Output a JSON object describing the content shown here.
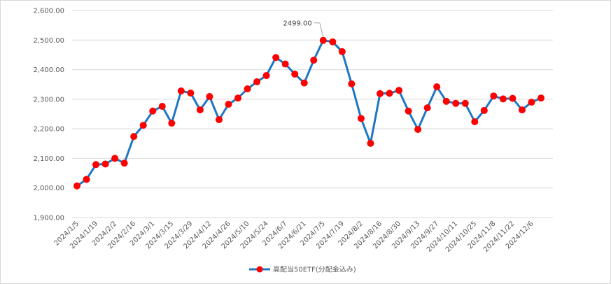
{
  "chart_data": {
    "type": "line",
    "ylim": [
      1900,
      2600
    ],
    "y_ticks": [
      "1,900.00",
      "2,000.00",
      "2,100.00",
      "2,200.00",
      "2,300.00",
      "2,400.00",
      "2,500.00",
      "2,600.00"
    ],
    "y_tick_values": [
      1900,
      2000,
      2100,
      2200,
      2300,
      2400,
      2500,
      2600
    ],
    "x_tick_labels": [
      "2024/1/5",
      "2024/1/19",
      "2024/2/2",
      "2024/2/16",
      "2024/3/1",
      "2024/3/15",
      "2024/3/29",
      "2024/4/12",
      "2024/4/26",
      "2024/5/10",
      "2024/5/24",
      "2024/6/7",
      "2024/6/21",
      "2024/7/5",
      "2024/7/19",
      "2024/8/2",
      "2024/8/16",
      "2024/8/30",
      "2024/9/13",
      "2024/9/27",
      "2024/10/11",
      "2024/10/25",
      "2024/11/8",
      "2024/11/22",
      "2024/12/6"
    ],
    "grid": "horizontal",
    "legend_position": "bottom",
    "series": [
      {
        "name": "高配当50ETF(分配金込み)",
        "color": "#1f77c4",
        "marker_color": "#ff0000",
        "x": [
          "2024/1/5",
          "2024/1/12",
          "2024/1/19",
          "2024/1/26",
          "2024/2/2",
          "2024/2/9",
          "2024/2/16",
          "2024/2/23",
          "2024/3/1",
          "2024/3/8",
          "2024/3/15",
          "2024/3/22",
          "2024/3/29",
          "2024/4/5",
          "2024/4/12",
          "2024/4/19",
          "2024/4/26",
          "2024/5/3",
          "2024/5/10",
          "2024/5/17",
          "2024/5/24",
          "2024/5/31",
          "2024/6/7",
          "2024/6/14",
          "2024/6/21",
          "2024/6/28",
          "2024/7/5",
          "2024/7/12",
          "2024/7/19",
          "2024/7/26",
          "2024/8/2",
          "2024/8/9",
          "2024/8/16",
          "2024/8/23",
          "2024/8/30",
          "2024/9/6",
          "2024/9/13",
          "2024/9/20",
          "2024/9/27",
          "2024/10/4",
          "2024/10/11",
          "2024/10/18",
          "2024/10/25",
          "2024/11/1",
          "2024/11/8",
          "2024/11/15",
          "2024/11/22",
          "2024/11/29",
          "2024/12/6",
          "2024/12/13"
        ],
        "values": [
          2007,
          2029,
          2079,
          2081,
          2100,
          2084,
          2174,
          2212,
          2260,
          2276,
          2219,
          2328,
          2321,
          2264,
          2309,
          2231,
          2283,
          2304,
          2335,
          2359,
          2380,
          2441,
          2419,
          2385,
          2355,
          2432,
          2499,
          2494,
          2461,
          2352,
          2235,
          2151,
          2319,
          2320,
          2330,
          2260,
          2198,
          2271,
          2342,
          2293,
          2286,
          2286,
          2224,
          2262,
          2311,
          2301,
          2303,
          2264,
          2290,
          2304
        ]
      }
    ],
    "annotations": [
      {
        "text": "2499.00",
        "x": "2024/7/5",
        "y": 2499
      }
    ]
  }
}
